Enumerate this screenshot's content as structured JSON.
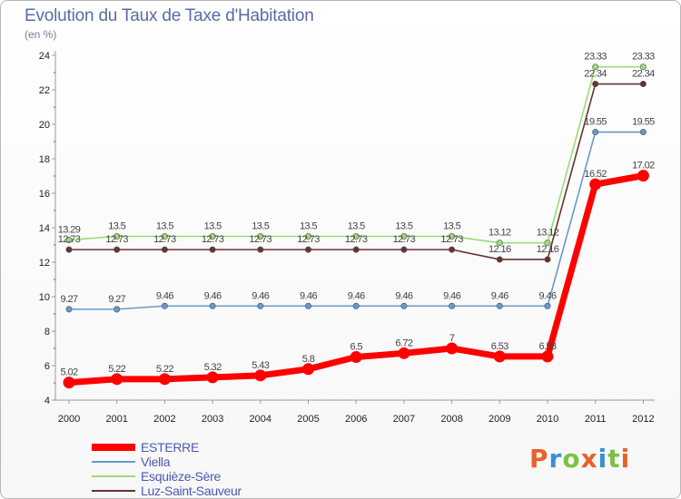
{
  "header": {
    "title": "Evolution du Taux de Taxe d'Habitation",
    "subtitle": "(en %)"
  },
  "logo": {
    "text": "Proxiti",
    "colors": [
      "#e8622a",
      "#3a8fd6",
      "#7cc243",
      "#e8622a",
      "#3a8fd6",
      "#7cc243",
      "#e8622a"
    ]
  },
  "chart_data": {
    "type": "line",
    "categories": [
      "2000",
      "2001",
      "2002",
      "2003",
      "2004",
      "2005",
      "2006",
      "2007",
      "2008",
      "2009",
      "2010",
      "2011",
      "2012"
    ],
    "ylim": [
      4,
      24
    ],
    "yticks": [
      "4",
      "6",
      "8",
      "10",
      "12",
      "14",
      "16",
      "18",
      "20",
      "22",
      "24"
    ],
    "grid": false,
    "legend_position": "bottom-left",
    "series": [
      {
        "name": "ESTERRE",
        "color": "#ff0000",
        "values": [
          5.02,
          5.22,
          5.22,
          5.32,
          5.43,
          5.8,
          6.5,
          6.72,
          7,
          6.53,
          6.53,
          16.52,
          17.02
        ],
        "labels": [
          "5.02",
          "5.22",
          "5.22",
          "5.32",
          "5.43",
          "5.8",
          "6.5",
          "6.72",
          "7",
          "6.53",
          "6.53",
          "16.52",
          "17.02"
        ]
      },
      {
        "name": "Viella",
        "color": "#6699cc",
        "values": [
          9.27,
          9.27,
          9.46,
          9.46,
          9.46,
          9.46,
          9.46,
          9.46,
          9.46,
          9.46,
          9.46,
          19.55,
          19.55
        ],
        "labels": [
          "9.27",
          "9.27",
          "9.46",
          "9.46",
          "9.46",
          "9.46",
          "9.46",
          "9.46",
          "9.46",
          "9.46",
          "9.46",
          "19.55",
          "19.55"
        ]
      },
      {
        "name": "Esquièze-Sère",
        "color": "#99dd77",
        "values": [
          13.29,
          13.5,
          13.5,
          13.5,
          13.5,
          13.5,
          13.5,
          13.5,
          13.5,
          13.12,
          13.12,
          23.33,
          23.33
        ],
        "labels": [
          "13.29",
          "13.5",
          "13.5",
          "13.5",
          "13.5",
          "13.5",
          "13.5",
          "13.5",
          "13.5",
          "13.12",
          "13.12",
          "23.33",
          "23.33"
        ]
      },
      {
        "name": "Luz-Saint-Sauveur",
        "color": "#663333",
        "values": [
          12.73,
          12.73,
          12.73,
          12.73,
          12.73,
          12.73,
          12.73,
          12.73,
          12.73,
          12.16,
          12.16,
          22.34,
          22.34
        ],
        "labels": [
          "12.73",
          "12.73",
          "12.73",
          "12.73",
          "12.73",
          "12.73",
          "12.73",
          "12.73",
          "12.73",
          "12.16",
          "12.16",
          "22.34",
          "22.34"
        ]
      }
    ]
  }
}
